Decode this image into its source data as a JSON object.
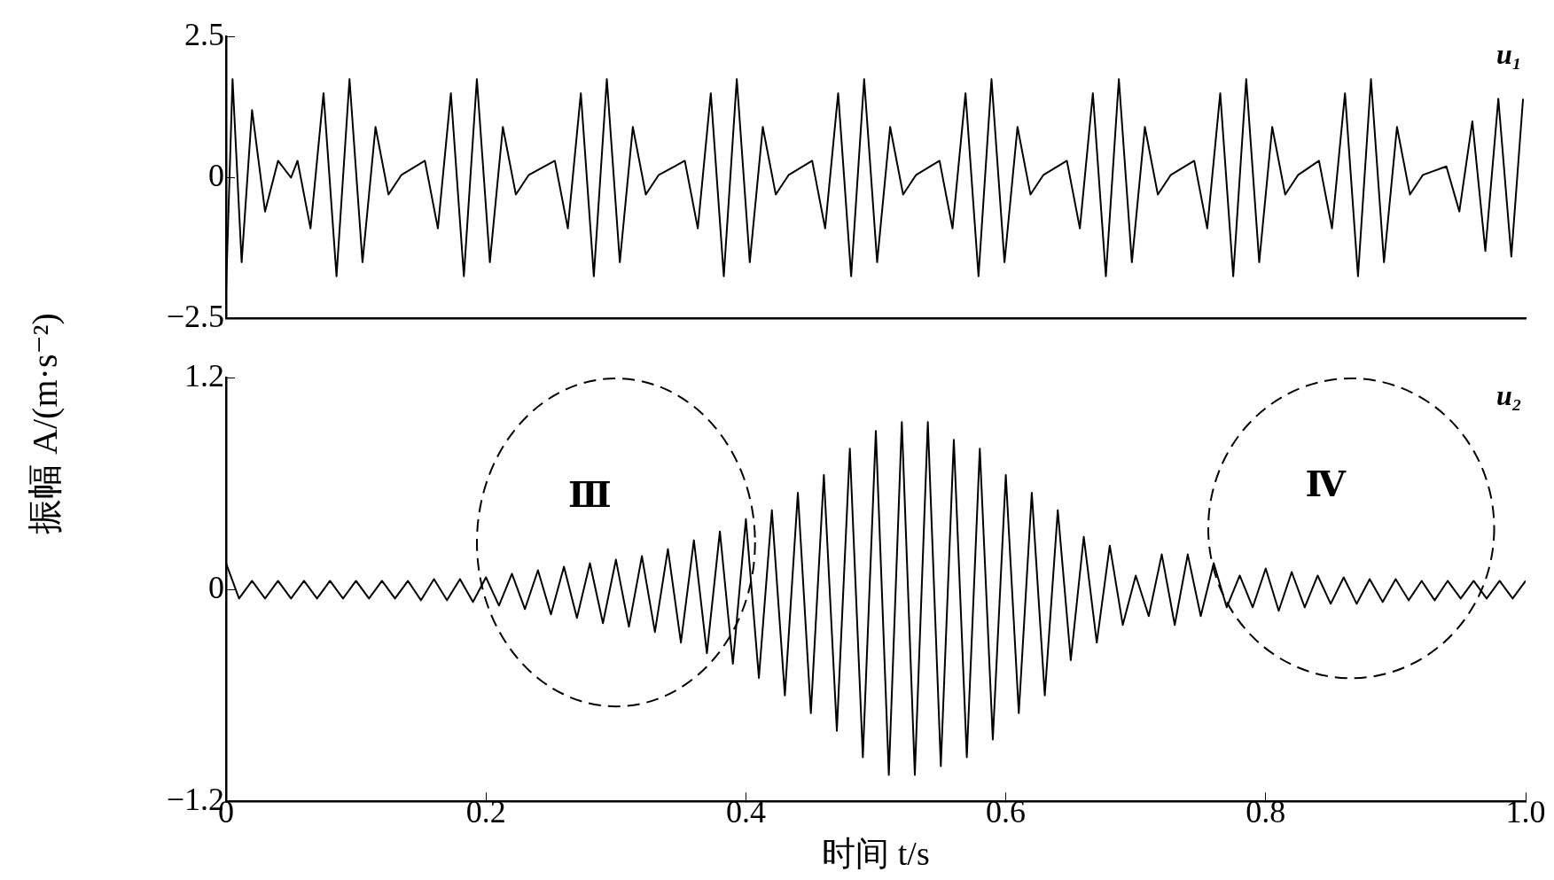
{
  "chart_data": [
    {
      "type": "line",
      "ylabel": "振幅 A/(m·s⁻²)",
      "xlim": [
        0,
        1
      ],
      "ylim": [
        -2.5,
        2.5
      ],
      "yticks": [
        2.5,
        0,
        -2.5
      ],
      "grid": false,
      "tick_labels": "y",
      "x": [
        0,
        0.005,
        0.012,
        0.02,
        0.03,
        0.04,
        0.05,
        0.055,
        0.065,
        0.075,
        0.085,
        0.095,
        0.105,
        0.115,
        0.125,
        0.135,
        0.153,
        0.163,
        0.173,
        0.183,
        0.193,
        0.203,
        0.213,
        0.223,
        0.233,
        0.253,
        0.263,
        0.273,
        0.283,
        0.293,
        0.303,
        0.313,
        0.323,
        0.333,
        0.353,
        0.363,
        0.373,
        0.383,
        0.393,
        0.403,
        0.413,
        0.423,
        0.433,
        0.451,
        0.461,
        0.471,
        0.481,
        0.491,
        0.501,
        0.511,
        0.521,
        0.531,
        0.549,
        0.559,
        0.569,
        0.579,
        0.589,
        0.599,
        0.609,
        0.619,
        0.629,
        0.647,
        0.657,
        0.667,
        0.677,
        0.687,
        0.697,
        0.707,
        0.717,
        0.727,
        0.745,
        0.755,
        0.765,
        0.775,
        0.785,
        0.795,
        0.805,
        0.815,
        0.825,
        0.841,
        0.851,
        0.861,
        0.871,
        0.881,
        0.891,
        0.901,
        0.911,
        0.921,
        0.939,
        0.949,
        0.959,
        0.969,
        0.979,
        0.989,
        0.998
      ],
      "series": [
        {
          "name": "u₁",
          "color": "#000000",
          "values": [
            -2.0,
            1.75,
            -1.5,
            1.2,
            -0.6,
            0.3,
            0,
            0.3,
            -0.9,
            1.5,
            -1.75,
            1.75,
            -1.5,
            0.9,
            -0.3,
            0.05,
            0.3,
            -0.9,
            1.5,
            -1.75,
            1.75,
            -1.5,
            0.9,
            -0.3,
            0.05,
            0.3,
            -0.9,
            1.5,
            -1.75,
            1.75,
            -1.5,
            0.9,
            -0.3,
            0.05,
            0.3,
            -0.9,
            1.5,
            -1.75,
            1.75,
            -1.5,
            0.9,
            -0.3,
            0.05,
            0.3,
            -0.9,
            1.5,
            -1.75,
            1.75,
            -1.5,
            0.9,
            -0.3,
            0.05,
            0.3,
            -0.9,
            1.5,
            -1.75,
            1.75,
            -1.5,
            0.9,
            -0.3,
            0.05,
            0.3,
            -0.9,
            1.5,
            -1.75,
            1.75,
            -1.5,
            0.9,
            -0.3,
            0.05,
            0.3,
            -0.9,
            1.5,
            -1.75,
            1.75,
            -1.5,
            0.9,
            -0.3,
            0.05,
            0.3,
            -0.9,
            1.5,
            -1.75,
            1.75,
            -1.5,
            0.9,
            -0.3,
            0.05,
            0.2,
            -0.6,
            1.0,
            -1.3,
            1.4,
            -1.4,
            1.4
          ]
        }
      ]
    },
    {
      "type": "line",
      "xlabel": "时间 t/s",
      "xlim": [
        0,
        1
      ],
      "xticks": [
        0,
        0.2,
        0.4,
        0.6,
        0.8,
        {
          "value": 1,
          "label": "1.0"
        }
      ],
      "ylim": [
        -1.2,
        1.2
      ],
      "yticks": [
        1.2,
        0,
        -1.2
      ],
      "grid": false,
      "annotations": [
        "Ⅲ",
        "Ⅳ"
      ],
      "x": [
        0,
        0.01,
        0.02,
        0.03,
        0.04,
        0.05,
        0.06,
        0.07,
        0.08,
        0.09,
        0.1,
        0.11,
        0.12,
        0.13,
        0.14,
        0.15,
        0.16,
        0.17,
        0.18,
        0.19,
        0.2,
        0.21,
        0.22,
        0.23,
        0.24,
        0.25,
        0.26,
        0.27,
        0.28,
        0.29,
        0.3,
        0.31,
        0.32,
        0.33,
        0.34,
        0.35,
        0.36,
        0.37,
        0.38,
        0.39,
        0.4,
        0.41,
        0.42,
        0.43,
        0.44,
        0.45,
        0.46,
        0.47,
        0.48,
        0.49,
        0.5,
        0.51,
        0.52,
        0.53,
        0.54,
        0.55,
        0.56,
        0.57,
        0.58,
        0.59,
        0.6,
        0.61,
        0.62,
        0.63,
        0.64,
        0.65,
        0.66,
        0.67,
        0.68,
        0.69,
        0.7,
        0.71,
        0.72,
        0.73,
        0.74,
        0.75,
        0.76,
        0.77,
        0.78,
        0.79,
        0.8,
        0.81,
        0.82,
        0.83,
        0.84,
        0.85,
        0.86,
        0.87,
        0.88,
        0.89,
        0.9,
        0.91,
        0.92,
        0.93,
        0.94,
        0.95,
        0.96,
        0.97,
        0.98,
        0.99,
        1
      ],
      "series": [
        {
          "name": "u₂",
          "color": "#000000",
          "values": [
            0.15,
            -0.05,
            0.05,
            -0.05,
            0.05,
            -0.05,
            0.05,
            -0.05,
            0.05,
            -0.05,
            0.05,
            -0.05,
            0.05,
            -0.05,
            0.05,
            -0.06,
            0.06,
            -0.06,
            0.06,
            -0.07,
            0.07,
            -0.09,
            0.09,
            -0.11,
            0.11,
            -0.14,
            0.13,
            -0.16,
            0.15,
            -0.19,
            0.17,
            -0.21,
            0.19,
            -0.24,
            0.23,
            -0.3,
            0.28,
            -0.36,
            0.33,
            -0.42,
            0.4,
            -0.5,
            0.45,
            -0.6,
            0.55,
            -0.7,
            0.65,
            -0.8,
            0.8,
            -0.95,
            0.9,
            -1.05,
            0.95,
            -1.05,
            0.95,
            -1.0,
            0.85,
            -0.95,
            0.8,
            -0.85,
            0.65,
            -0.7,
            0.55,
            -0.6,
            0.45,
            -0.4,
            0.3,
            -0.3,
            0.25,
            -0.2,
            0.08,
            -0.15,
            0.2,
            -0.2,
            0.2,
            -0.15,
            0.15,
            -0.1,
            0.08,
            -0.1,
            0.12,
            -0.12,
            0.1,
            -0.1,
            0.08,
            -0.08,
            0.07,
            -0.08,
            0.06,
            -0.07,
            0.06,
            -0.06,
            0.05,
            -0.06,
            0.05,
            -0.05,
            0.05,
            -0.05,
            0.05,
            -0.05,
            0.05
          ]
        }
      ]
    }
  ]
}
